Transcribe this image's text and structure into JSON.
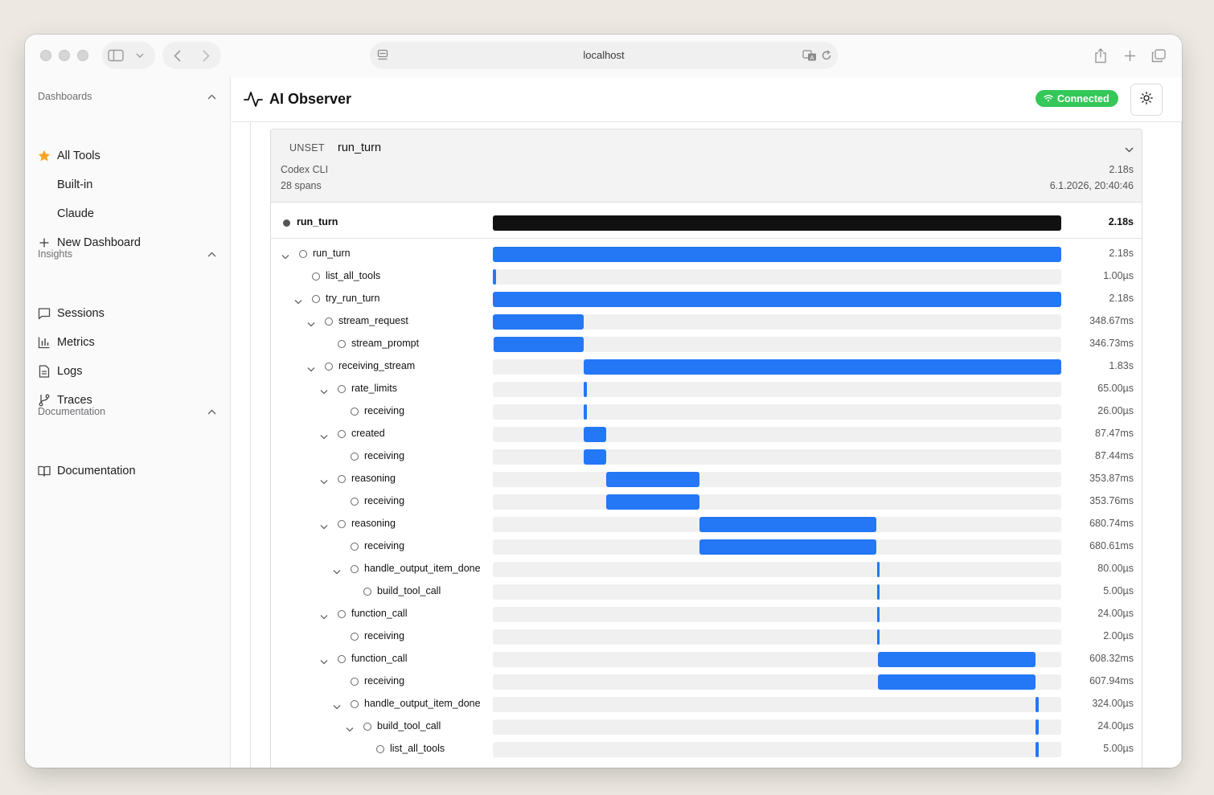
{
  "browser": {
    "url": "localhost"
  },
  "sidebar": {
    "dashboards": {
      "title": "Dashboards",
      "items": [
        {
          "label": "All Tools",
          "icon": "star-icon"
        },
        {
          "label": "Built-in"
        },
        {
          "label": "Claude"
        },
        {
          "label": "New Dashboard",
          "icon": "plus-icon"
        }
      ]
    },
    "insights": {
      "title": "Insights",
      "items": [
        {
          "label": "Sessions",
          "icon": "message-square-icon"
        },
        {
          "label": "Metrics",
          "icon": "bar-chart-icon"
        },
        {
          "label": "Logs",
          "icon": "file-text-icon"
        },
        {
          "label": "Traces",
          "icon": "git-branch-icon"
        }
      ]
    },
    "documentation": {
      "title": "Documentation",
      "items": [
        {
          "label": "Documentation",
          "icon": "book-open-icon"
        }
      ]
    }
  },
  "header": {
    "title": "AI Observer",
    "status": "Connected",
    "status_color": "#34c759"
  },
  "trace": {
    "status": "UNSET",
    "name": "run_turn",
    "service": "Codex CLI",
    "span_count": "28 spans",
    "duration": "2.18s",
    "timestamp": "6.1.2026, 20:40:46",
    "root": {
      "name": "run_turn",
      "duration": "2.18s"
    },
    "bar_color": "#2477f5",
    "spans": [
      {
        "name": "run_turn",
        "duration": "2.18s",
        "depth": 0,
        "expandable": true,
        "start": 0.0,
        "end": 1.0
      },
      {
        "name": "list_all_tools",
        "duration": "1.00µs",
        "depth": 1,
        "expandable": false,
        "start": 0.0,
        "end": 0.005
      },
      {
        "name": "try_run_turn",
        "duration": "2.18s",
        "depth": 1,
        "expandable": true,
        "start": 0.0,
        "end": 1.0
      },
      {
        "name": "stream_request",
        "duration": "348.67ms",
        "depth": 2,
        "expandable": true,
        "start": 0.0,
        "end": 0.16
      },
      {
        "name": "stream_prompt",
        "duration": "346.73ms",
        "depth": 3,
        "expandable": false,
        "start": 0.001,
        "end": 0.16
      },
      {
        "name": "receiving_stream",
        "duration": "1.83s",
        "depth": 2,
        "expandable": true,
        "start": 0.16,
        "end": 1.0
      },
      {
        "name": "rate_limits",
        "duration": "65.00µs",
        "depth": 3,
        "expandable": true,
        "start": 0.16,
        "end": 0.165
      },
      {
        "name": "receiving",
        "duration": "26.00µs",
        "depth": 4,
        "expandable": false,
        "start": 0.16,
        "end": 0.165
      },
      {
        "name": "created",
        "duration": "87.47ms",
        "depth": 3,
        "expandable": true,
        "start": 0.16,
        "end": 0.2
      },
      {
        "name": "receiving",
        "duration": "87.44ms",
        "depth": 4,
        "expandable": false,
        "start": 0.16,
        "end": 0.2
      },
      {
        "name": "reasoning",
        "duration": "353.87ms",
        "depth": 3,
        "expandable": true,
        "start": 0.2,
        "end": 0.363
      },
      {
        "name": "receiving",
        "duration": "353.76ms",
        "depth": 4,
        "expandable": false,
        "start": 0.2,
        "end": 0.363
      },
      {
        "name": "reasoning",
        "duration": "680.74ms",
        "depth": 3,
        "expandable": true,
        "start": 0.363,
        "end": 0.675
      },
      {
        "name": "receiving",
        "duration": "680.61ms",
        "depth": 4,
        "expandable": false,
        "start": 0.363,
        "end": 0.675
      },
      {
        "name": "handle_output_item_done",
        "duration": "80.00µs",
        "depth": 4,
        "expandable": true,
        "start": 0.676,
        "end": 0.68
      },
      {
        "name": "build_tool_call",
        "duration": "5.00µs",
        "depth": 5,
        "expandable": false,
        "start": 0.676,
        "end": 0.68
      },
      {
        "name": "function_call",
        "duration": "24.00µs",
        "depth": 3,
        "expandable": true,
        "start": 0.676,
        "end": 0.68
      },
      {
        "name": "receiving",
        "duration": "2.00µs",
        "depth": 4,
        "expandable": false,
        "start": 0.676,
        "end": 0.68
      },
      {
        "name": "function_call",
        "duration": "608.32ms",
        "depth": 3,
        "expandable": true,
        "start": 0.677,
        "end": 0.955
      },
      {
        "name": "receiving",
        "duration": "607.94ms",
        "depth": 4,
        "expandable": false,
        "start": 0.677,
        "end": 0.955
      },
      {
        "name": "handle_output_item_done",
        "duration": "324.00µs",
        "depth": 4,
        "expandable": true,
        "start": 0.955,
        "end": 0.96
      },
      {
        "name": "build_tool_call",
        "duration": "24.00µs",
        "depth": 5,
        "expandable": true,
        "start": 0.955,
        "end": 0.96
      },
      {
        "name": "list_all_tools",
        "duration": "5.00µs",
        "depth": 6,
        "expandable": false,
        "start": 0.955,
        "end": 0.96
      }
    ]
  }
}
